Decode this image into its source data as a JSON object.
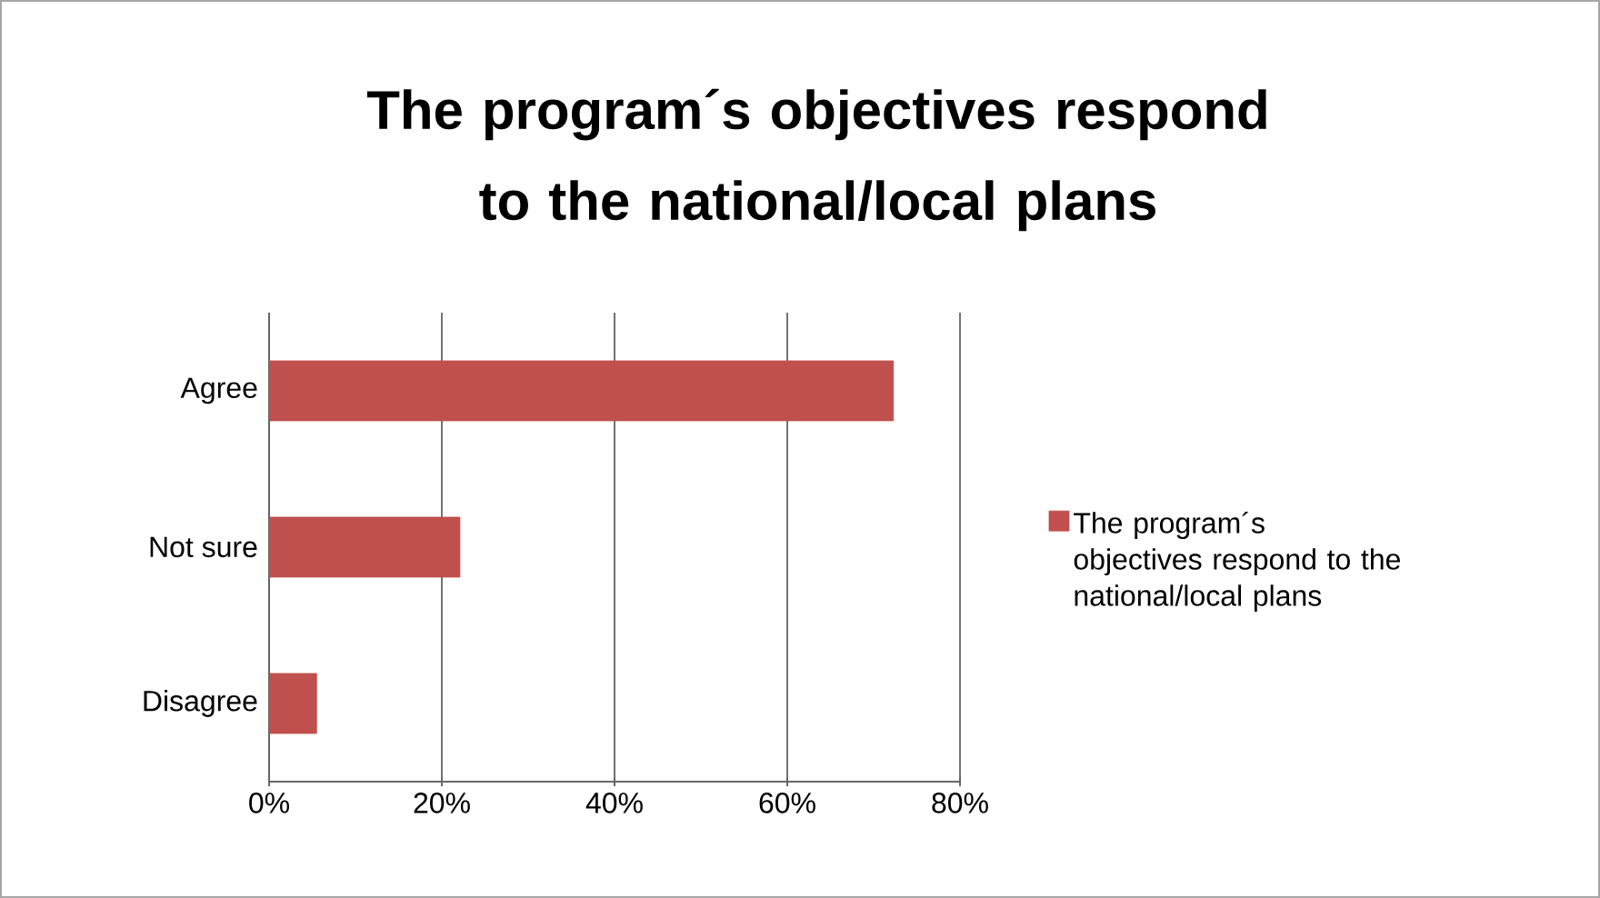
{
  "chart_data": {
    "type": "bar",
    "orientation": "horizontal",
    "title": "The program´s objectives respond to the national/local plans",
    "categories": [
      "Agree",
      "Not sure",
      "Disagree"
    ],
    "series": [
      {
        "name": "The program´s objectives respond to the national/local plans",
        "color": "#c0504d",
        "values": [
          72.3,
          22.1,
          5.5
        ]
      }
    ],
    "xlim": [
      0,
      80
    ],
    "xticks": [
      {
        "value": 0,
        "label": "0%"
      },
      {
        "value": 20,
        "label": "20%"
      },
      {
        "value": 40,
        "label": "40%"
      },
      {
        "value": 60,
        "label": "60%"
      },
      {
        "value": 80,
        "label": "80%"
      }
    ],
    "grid": "x",
    "legend": "right"
  }
}
